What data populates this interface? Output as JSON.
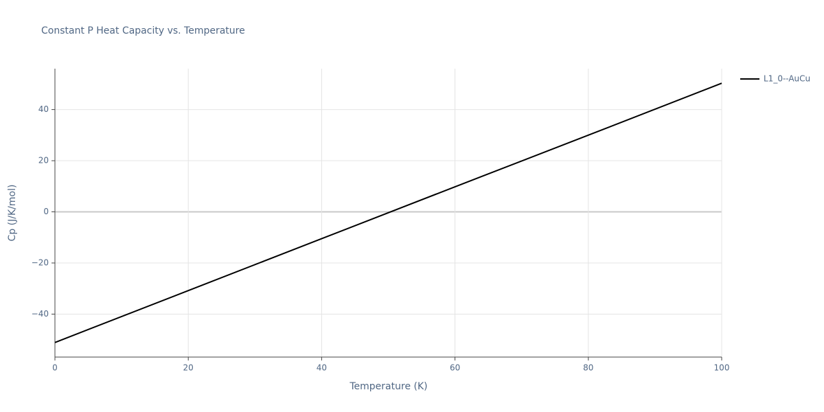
{
  "chart_data": {
    "type": "line",
    "title": "Constant P Heat Capacity vs. Temperature",
    "x_label": "Temperature (K)",
    "y_label": "Cp (J/K/mol)",
    "x": [
      0,
      20,
      40,
      60,
      80,
      100
    ],
    "series": [
      {
        "name": "L1_0--AuCu",
        "color": "#000000",
        "values": [
          -51.1,
          -30.8,
          -10.5,
          9.8,
          30.0,
          50.3
        ]
      }
    ],
    "xlim": [
      0,
      100
    ],
    "xticks": [
      0,
      20,
      40,
      60,
      80,
      100
    ],
    "ylim": [
      -56.8,
      56
    ],
    "yticks": [
      {
        "value": -40,
        "label": "−40"
      },
      {
        "value": -20,
        "label": "−20"
      },
      0,
      20,
      40
    ],
    "grid": true,
    "legend": "right"
  }
}
